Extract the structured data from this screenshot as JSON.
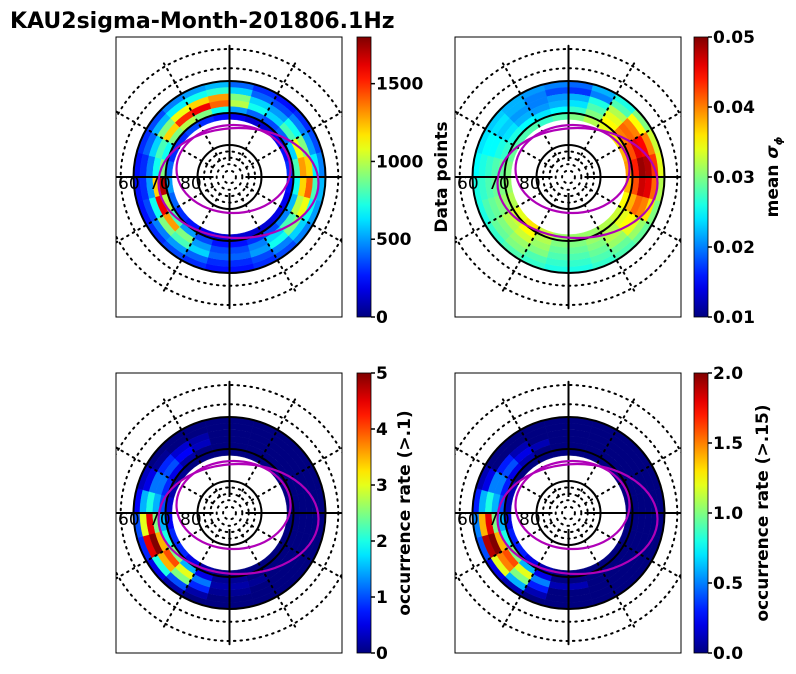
{
  "figure": {
    "title": "KAU2sigma-Month-201806.1Hz"
  },
  "chart_data": [
    {
      "type": "heatmap",
      "projection": "polar (magnetic latitude vs MLT)",
      "panel": "top-left",
      "title": "",
      "colormap": "jet",
      "colorbar": {
        "label": "Data points",
        "range": [
          0,
          1800
        ],
        "ticks": [
          "0",
          "500",
          "1000",
          "1500"
        ],
        "tick_values": [
          0,
          500,
          1000,
          1500
        ]
      },
      "lat_range": [
        60,
        90
      ],
      "lat_tick_labels": [
        "60",
        "70",
        "80"
      ],
      "lat_bins": [
        60,
        62,
        64,
        66,
        68,
        70,
        72
      ],
      "mlt_sectors": 24,
      "values": [
        [
          250,
          300,
          350,
          300,
          250,
          250,
          250,
          300,
          350,
          450,
          500,
          550,
          400,
          300,
          250,
          300,
          350,
          450,
          550,
          500,
          450,
          350,
          300,
          250
        ],
        [
          300,
          400,
          500,
          450,
          350,
          300,
          300,
          400,
          550,
          650,
          700,
          750,
          600,
          400,
          350,
          450,
          500,
          650,
          800,
          700,
          600,
          450,
          350,
          300
        ],
        [
          400,
          600,
          800,
          900,
          700,
          500,
          450,
          600,
          900,
          1100,
          1200,
          1300,
          900,
          600,
          500,
          700,
          900,
          1200,
          1400,
          1100,
          900,
          700,
          500,
          400
        ],
        [
          350,
          500,
          900,
          1300,
          1600,
          1200,
          700,
          800,
          1200,
          1500,
          1600,
          1400,
          1000,
          700,
          600,
          800,
          1100,
          1300,
          1200,
          1000,
          800,
          600,
          450,
          350
        ],
        [
          250,
          350,
          500,
          800,
          1000,
          1700,
          900,
          700,
          900,
          1000,
          900,
          700,
          500,
          400,
          350,
          400,
          600,
          800,
          700,
          550,
          450,
          350,
          300,
          250
        ],
        [
          150,
          200,
          250,
          300,
          400,
          500,
          400,
          300,
          300,
          350,
          300,
          250,
          200,
          150,
          150,
          200,
          250,
          300,
          250,
          200,
          180,
          150,
          150,
          150
        ]
      ],
      "overlay_curves": [
        "outer auroral oval (magenta)",
        "inner auroral oval (magenta)"
      ]
    },
    {
      "type": "heatmap",
      "projection": "polar (magnetic latitude vs MLT)",
      "panel": "top-right",
      "colormap": "jet",
      "colorbar": {
        "label": "mean σ_φ",
        "range": [
          0.01,
          0.05
        ],
        "ticks": [
          "0.01",
          "0.02",
          "0.03",
          "0.04",
          "0.05"
        ],
        "tick_values": [
          0.01,
          0.02,
          0.03,
          0.04,
          0.05
        ]
      },
      "lat_range": [
        60,
        90
      ],
      "lat_tick_labels": [
        "60",
        "70",
        "80"
      ],
      "lat_bins": [
        60,
        62,
        64,
        66,
        68,
        70,
        72
      ],
      "mlt_sectors": 24,
      "values": [
        [
          0.026,
          0.027,
          0.028,
          0.027,
          0.026,
          0.026,
          0.025,
          0.024,
          0.023,
          0.022,
          0.021,
          0.02,
          0.019,
          0.022,
          0.026,
          0.03,
          0.033,
          0.034,
          0.032,
          0.03,
          0.029,
          0.028,
          0.027,
          0.026
        ],
        [
          0.027,
          0.028,
          0.03,
          0.029,
          0.028,
          0.027,
          0.026,
          0.025,
          0.024,
          0.022,
          0.02,
          0.018,
          0.017,
          0.02,
          0.028,
          0.035,
          0.04,
          0.043,
          0.041,
          0.036,
          0.031,
          0.029,
          0.028,
          0.027
        ],
        [
          0.028,
          0.03,
          0.031,
          0.03,
          0.029,
          0.028,
          0.027,
          0.025,
          0.023,
          0.021,
          0.02,
          0.021,
          0.022,
          0.026,
          0.032,
          0.04,
          0.045,
          0.048,
          0.046,
          0.04,
          0.034,
          0.031,
          0.029,
          0.028
        ],
        [
          0.029,
          0.031,
          0.033,
          0.032,
          0.03,
          0.029,
          0.028,
          0.026,
          0.024,
          0.022,
          0.021,
          0.022,
          0.024,
          0.028,
          0.034,
          0.041,
          0.046,
          0.049,
          0.047,
          0.041,
          0.035,
          0.032,
          0.03,
          0.029
        ],
        [
          0.03,
          0.032,
          0.035,
          0.033,
          0.031,
          0.03,
          0.029,
          0.027,
          0.026,
          0.025,
          0.024,
          0.025,
          0.027,
          0.03,
          0.035,
          0.04,
          0.042,
          0.044,
          0.042,
          0.038,
          0.034,
          0.032,
          0.031,
          0.03
        ],
        [
          0.031,
          0.033,
          0.036,
          0.034,
          0.032,
          0.031,
          0.03,
          0.029,
          0.028,
          0.028,
          0.027,
          0.028,
          0.03,
          0.032,
          0.034,
          0.036,
          0.038,
          0.039,
          0.038,
          0.035,
          0.033,
          0.032,
          0.031,
          0.031
        ]
      ],
      "overlay_curves": [
        "outer auroral oval (magenta)",
        "inner auroral oval (magenta)"
      ]
    },
    {
      "type": "heatmap",
      "projection": "polar (magnetic latitude vs MLT)",
      "panel": "bottom-left",
      "colormap": "jet",
      "colorbar": {
        "label": "occurrence rate (>.1)",
        "range": [
          0,
          5
        ],
        "ticks": [
          "0",
          "1",
          "2",
          "3",
          "4",
          "5"
        ],
        "tick_values": [
          0,
          1,
          2,
          3,
          4,
          5
        ]
      },
      "lat_range": [
        60,
        90
      ],
      "lat_tick_labels": [
        "60",
        "70",
        "80"
      ],
      "lat_bins": [
        60,
        62,
        64,
        66,
        68,
        70,
        72
      ],
      "mlt_sectors": 24,
      "values": [
        [
          0.0,
          0.0,
          0.2,
          0.5,
          0.8,
          1.0,
          0.6,
          0.3,
          0.0,
          0.0,
          0.0,
          0.0,
          0.0,
          0.0,
          0.0,
          0.0,
          0.0,
          0.0,
          0.0,
          0.0,
          0.0,
          0.0,
          0.0,
          0.0
        ],
        [
          0.0,
          0.2,
          1.0,
          2.0,
          4.5,
          3.0,
          1.5,
          0.5,
          0.1,
          0.0,
          0.0,
          0.0,
          0.0,
          0.0,
          0.0,
          0.0,
          0.0,
          0.0,
          0.0,
          0.0,
          0.0,
          0.0,
          0.0,
          0.0
        ],
        [
          0.1,
          0.8,
          2.5,
          3.5,
          5.0,
          4.5,
          2.0,
          1.2,
          0.8,
          0.4,
          0.2,
          0.0,
          0.0,
          0.0,
          0.0,
          0.0,
          0.0,
          0.0,
          0.0,
          0.0,
          0.0,
          0.0,
          0.0,
          0.1
        ],
        [
          0.2,
          1.2,
          3.0,
          4.0,
          3.5,
          2.5,
          1.5,
          1.2,
          1.0,
          0.6,
          0.3,
          0.0,
          0.0,
          0.0,
          0.0,
          0.0,
          0.0,
          0.0,
          0.0,
          0.0,
          0.0,
          0.0,
          0.1,
          0.2
        ],
        [
          0.1,
          0.5,
          1.5,
          2.5,
          2.0,
          1.5,
          1.0,
          0.8,
          0.5,
          0.2,
          0.0,
          0.0,
          0.0,
          0.0,
          0.0,
          0.0,
          0.0,
          0.0,
          0.0,
          0.0,
          0.0,
          0.0,
          0.0,
          0.1
        ],
        [
          0.0,
          0.2,
          0.5,
          0.8,
          0.8,
          0.6,
          0.4,
          0.2,
          0.1,
          0.0,
          0.0,
          0.0,
          0.0,
          0.0,
          0.0,
          0.0,
          0.0,
          0.0,
          0.0,
          0.0,
          0.0,
          0.0,
          0.0,
          0.0
        ]
      ],
      "overlay_curves": [
        "outer auroral oval (magenta)",
        "inner auroral oval (magenta)"
      ]
    },
    {
      "type": "heatmap",
      "projection": "polar (magnetic latitude vs MLT)",
      "panel": "bottom-right",
      "colormap": "jet",
      "colorbar": {
        "label": "occurrence rate (>.15)",
        "range": [
          0.0,
          2.0
        ],
        "ticks": [
          "0.0",
          "0.5",
          "1.0",
          "1.5",
          "2.0"
        ],
        "tick_values": [
          0.0,
          0.5,
          1.0,
          1.5,
          2.0
        ]
      },
      "lat_range": [
        60,
        90
      ],
      "lat_tick_labels": [
        "60",
        "70",
        "80"
      ],
      "lat_bins": [
        60,
        62,
        64,
        66,
        68,
        70,
        72
      ],
      "mlt_sectors": 24,
      "values": [
        [
          0.0,
          0.0,
          0.1,
          0.2,
          0.4,
          0.5,
          0.3,
          0.1,
          0.0,
          0.0,
          0.0,
          0.0,
          0.0,
          0.0,
          0.0,
          0.0,
          0.0,
          0.0,
          0.0,
          0.0,
          0.0,
          0.0,
          0.0,
          0.0
        ],
        [
          0.0,
          0.1,
          0.6,
          1.2,
          1.9,
          1.4,
          0.6,
          0.2,
          0.0,
          0.0,
          0.0,
          0.0,
          0.0,
          0.0,
          0.0,
          0.0,
          0.0,
          0.0,
          0.0,
          0.0,
          0.0,
          0.0,
          0.0,
          0.0
        ],
        [
          0.0,
          0.3,
          1.0,
          1.5,
          2.0,
          1.8,
          0.8,
          0.5,
          0.3,
          0.1,
          0.0,
          0.0,
          0.0,
          0.0,
          0.0,
          0.0,
          0.0,
          0.0,
          0.0,
          0.0,
          0.0,
          0.0,
          0.0,
          0.0
        ],
        [
          0.1,
          0.5,
          1.2,
          1.6,
          1.4,
          1.0,
          0.6,
          0.5,
          0.4,
          0.2,
          0.1,
          0.0,
          0.0,
          0.0,
          0.0,
          0.0,
          0.0,
          0.0,
          0.0,
          0.0,
          0.0,
          0.0,
          0.0,
          0.1
        ],
        [
          0.0,
          0.2,
          0.6,
          1.0,
          0.8,
          0.6,
          0.4,
          0.3,
          0.2,
          0.1,
          0.0,
          0.0,
          0.0,
          0.0,
          0.0,
          0.0,
          0.0,
          0.0,
          0.0,
          0.0,
          0.0,
          0.0,
          0.0,
          0.0
        ],
        [
          0.0,
          0.1,
          0.2,
          0.3,
          0.3,
          0.2,
          0.1,
          0.1,
          0.0,
          0.0,
          0.0,
          0.0,
          0.0,
          0.0,
          0.0,
          0.0,
          0.0,
          0.0,
          0.0,
          0.0,
          0.0,
          0.0,
          0.0,
          0.0
        ]
      ],
      "overlay_curves": [
        "outer auroral oval (magenta)",
        "inner auroral oval (magenta)"
      ]
    }
  ]
}
